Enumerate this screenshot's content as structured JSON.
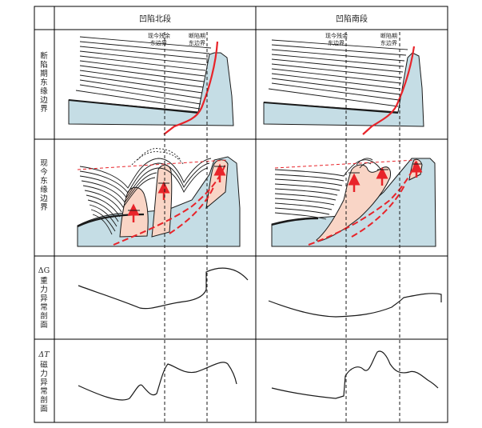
{
  "headers": {
    "left": "凹陷北段",
    "right": "凹陷南段"
  },
  "row_labels": {
    "row1": "断陷期东缘边界",
    "row2": "现今东缘边界",
    "row3_symbol": "ΔG",
    "row3_text": "重力异常剖面",
    "row4_symbol": "ΔT",
    "row4_text": "磁力异常剖面"
  },
  "annotations": {
    "residual_line1": "现今残余",
    "residual_line2": "东边界",
    "rift_line1": "断陷期",
    "rift_line2": "东边界"
  },
  "colors": {
    "basement": "#c5dde5",
    "intrusion": "#f9d5c6",
    "fault": "#e8242a",
    "arrow": "#e8242a",
    "line": "#1a1a1a"
  }
}
